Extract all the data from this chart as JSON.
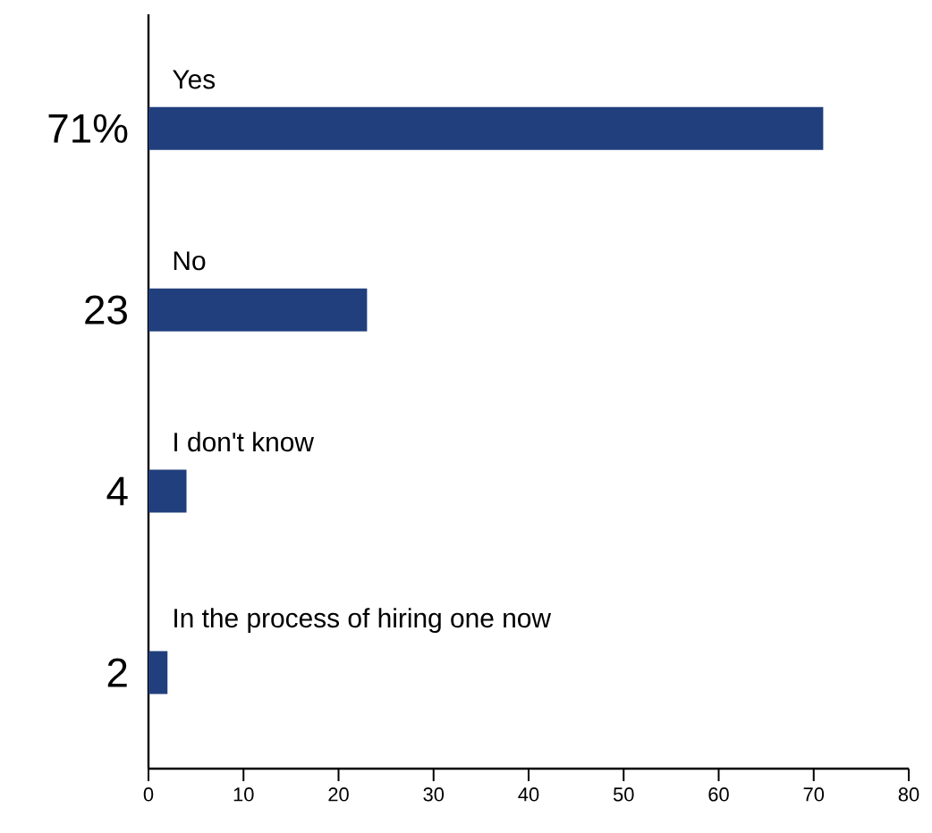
{
  "chart_data": {
    "type": "bar",
    "orientation": "horizontal",
    "categories": [
      "Yes",
      "No",
      "I don't know",
      "In the process of hiring one now"
    ],
    "values": [
      71,
      23,
      4,
      2
    ],
    "value_labels": [
      "71%",
      "23",
      "4",
      "2"
    ],
    "color": "#213f7d",
    "xlim": [
      0,
      80
    ],
    "xticks": [
      0,
      10,
      20,
      30,
      40,
      50,
      60,
      70,
      80
    ],
    "grid": false
  }
}
